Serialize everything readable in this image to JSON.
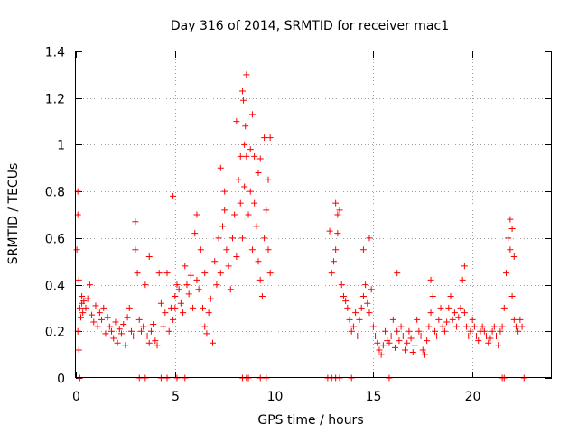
{
  "chart_data": {
    "type": "scatter",
    "title": "Day 316 of 2014, SRMTID for receiver mac1",
    "xlabel": "GPS time / hours",
    "ylabel": "SRMTID / TECUs",
    "xlim": [
      0,
      24
    ],
    "ylim": [
      0,
      1.4
    ],
    "xticks": [
      0,
      5,
      10,
      15,
      20
    ],
    "xtick_labels": [
      "0",
      "5",
      "10",
      "15",
      "20"
    ],
    "yticks": [
      0,
      0.2,
      0.4,
      0.6,
      0.8,
      1.0,
      1.2,
      1.4
    ],
    "ytick_labels": [
      "0",
      "0.2",
      "0.4",
      "0.6",
      "0.8",
      "1",
      "1.2",
      "1.4"
    ],
    "grid": true,
    "marker": "plus",
    "color": "#ff0000",
    "series": [
      {
        "name": "mac1",
        "x": [
          0.05,
          0.1,
          0.1,
          0.15,
          0.2,
          0.25,
          0.3,
          0.35,
          0.4,
          0.5,
          0.6,
          0.7,
          0.8,
          0.9,
          1.0,
          1.1,
          1.2,
          1.3,
          1.4,
          1.5,
          1.6,
          1.7,
          1.8,
          1.9,
          2.0,
          2.1,
          2.2,
          2.3,
          2.4,
          2.5,
          2.6,
          2.7,
          2.8,
          2.9,
          3.0,
          3.1,
          3.2,
          3.3,
          3.4,
          3.5,
          3.6,
          3.7,
          3.8,
          3.9,
          4.0,
          4.1,
          4.2,
          4.3,
          4.4,
          4.5,
          4.6,
          4.7,
          4.8,
          4.9,
          5.0,
          5.1,
          5.2,
          5.3,
          5.4,
          5.5,
          5.6,
          5.7,
          5.8,
          5.9,
          6.0,
          6.1,
          6.2,
          6.3,
          6.4,
          6.5,
          6.6,
          6.7,
          6.8,
          6.9,
          7.0,
          7.1,
          7.2,
          7.3,
          7.4,
          7.5,
          7.6,
          7.7,
          7.8,
          7.9,
          8.0,
          8.1,
          8.2,
          8.3,
          8.4,
          8.5,
          8.6,
          8.7,
          8.8,
          8.9,
          9.0,
          9.1,
          9.2,
          9.3,
          9.4,
          9.5,
          9.6,
          9.7,
          9.8,
          0.1,
          0.15,
          0.3,
          3.0,
          3.7,
          4.9,
          5.0,
          6.1,
          6.5,
          7.3,
          7.5,
          8.1,
          8.3,
          8.4,
          8.5,
          8.6,
          8.8,
          8.9,
          9.0,
          9.2,
          9.3,
          9.5,
          9.7,
          9.8,
          8.45,
          8.55,
          12.8,
          12.9,
          13.0,
          13.1,
          13.2,
          13.3,
          13.4,
          13.5,
          13.6,
          13.7,
          13.8,
          13.9,
          14.0,
          14.1,
          14.2,
          14.3,
          14.4,
          14.5,
          14.6,
          14.7,
          14.8,
          14.9,
          15.0,
          15.1,
          15.2,
          15.3,
          15.4,
          15.5,
          15.6,
          15.7,
          15.8,
          15.9,
          16.0,
          16.1,
          16.2,
          16.3,
          16.4,
          16.5,
          16.6,
          16.7,
          16.8,
          16.9,
          17.0,
          17.1,
          17.2,
          17.3,
          17.4,
          17.5,
          17.6,
          17.7,
          17.8,
          17.9,
          18.0,
          18.1,
          18.2,
          18.3,
          18.4,
          18.5,
          18.6,
          18.7,
          18.8,
          18.9,
          19.0,
          19.1,
          19.2,
          19.3,
          19.4,
          19.5,
          19.6,
          19.7,
          19.8,
          19.9,
          20.0,
          20.1,
          20.2,
          20.3,
          20.4,
          20.5,
          20.6,
          20.7,
          20.8,
          20.9,
          21.0,
          21.1,
          21.2,
          21.3,
          21.4,
          21.5,
          21.6,
          21.7,
          21.8,
          21.9,
          22.0,
          22.1,
          22.2,
          22.3,
          22.4,
          22.5,
          13.1,
          13.2,
          14.8,
          14.5,
          16.2,
          17.9,
          19.6,
          21.9,
          22.0,
          22.1,
          0.2,
          3.2,
          3.5,
          4.3,
          4.6,
          5.1,
          5.5,
          8.4,
          8.6,
          8.7,
          9.3,
          9.6,
          12.7,
          12.9,
          13.1,
          13.3,
          13.9,
          15.8,
          21.5,
          21.6,
          22.6
        ],
        "y": [
          0.55,
          0.7,
          0.8,
          0.42,
          0.3,
          0.26,
          0.35,
          0.28,
          0.33,
          0.3,
          0.34,
          0.4,
          0.27,
          0.24,
          0.31,
          0.22,
          0.28,
          0.25,
          0.3,
          0.19,
          0.26,
          0.22,
          0.2,
          0.17,
          0.24,
          0.15,
          0.21,
          0.19,
          0.23,
          0.14,
          0.26,
          0.3,
          0.2,
          0.18,
          0.55,
          0.45,
          0.25,
          0.2,
          0.22,
          0.4,
          0.18,
          0.15,
          0.2,
          0.23,
          0.16,
          0.14,
          0.45,
          0.32,
          0.22,
          0.28,
          0.45,
          0.2,
          0.3,
          0.25,
          0.35,
          0.4,
          0.38,
          0.32,
          0.28,
          0.48,
          0.4,
          0.36,
          0.44,
          0.3,
          0.62,
          0.42,
          0.38,
          0.55,
          0.3,
          0.22,
          0.19,
          0.28,
          0.34,
          0.15,
          0.5,
          0.4,
          0.6,
          0.45,
          0.65,
          0.72,
          0.55,
          0.48,
          0.38,
          0.6,
          0.7,
          0.52,
          0.85,
          0.75,
          0.6,
          0.82,
          0.95,
          0.7,
          0.8,
          0.55,
          0.75,
          0.65,
          0.5,
          0.42,
          0.35,
          0.6,
          0.72,
          0.55,
          0.45,
          0.2,
          0.12,
          0.32,
          0.67,
          0.52,
          0.78,
          0.3,
          0.7,
          0.45,
          0.9,
          0.8,
          1.1,
          0.95,
          1.23,
          1.0,
          1.3,
          0.98,
          1.13,
          0.95,
          0.88,
          0.94,
          1.03,
          0.85,
          1.03,
          1.19,
          1.08,
          0.63,
          0.45,
          0.5,
          0.55,
          0.62,
          0.72,
          0.4,
          0.35,
          0.33,
          0.3,
          0.25,
          0.2,
          0.22,
          0.28,
          0.18,
          0.25,
          0.3,
          0.35,
          0.4,
          0.32,
          0.28,
          0.38,
          0.22,
          0.18,
          0.15,
          0.12,
          0.1,
          0.14,
          0.2,
          0.16,
          0.15,
          0.18,
          0.25,
          0.13,
          0.2,
          0.16,
          0.22,
          0.18,
          0.12,
          0.15,
          0.2,
          0.17,
          0.11,
          0.14,
          0.25,
          0.2,
          0.18,
          0.12,
          0.1,
          0.16,
          0.22,
          0.28,
          0.35,
          0.2,
          0.18,
          0.25,
          0.3,
          0.22,
          0.2,
          0.24,
          0.3,
          0.35,
          0.25,
          0.28,
          0.22,
          0.26,
          0.3,
          0.42,
          0.28,
          0.22,
          0.18,
          0.2,
          0.25,
          0.22,
          0.18,
          0.16,
          0.2,
          0.22,
          0.2,
          0.18,
          0.15,
          0.17,
          0.2,
          0.22,
          0.18,
          0.14,
          0.2,
          0.22,
          0.3,
          0.45,
          0.6,
          0.55,
          0.35,
          0.25,
          0.22,
          0.2,
          0.25,
          0.22,
          0.75,
          0.7,
          0.6,
          0.55,
          0.45,
          0.42,
          0.48,
          0.68,
          0.64,
          0.52,
          0.0,
          0.0,
          0.0,
          0.0,
          0.0,
          0.0,
          0.0,
          0.0,
          0.0,
          0.0,
          0.0,
          0.0,
          0.0,
          0.0,
          0.0,
          0.0,
          0.0,
          0.0,
          0.0,
          0.0,
          0.0
        ]
      }
    ]
  }
}
